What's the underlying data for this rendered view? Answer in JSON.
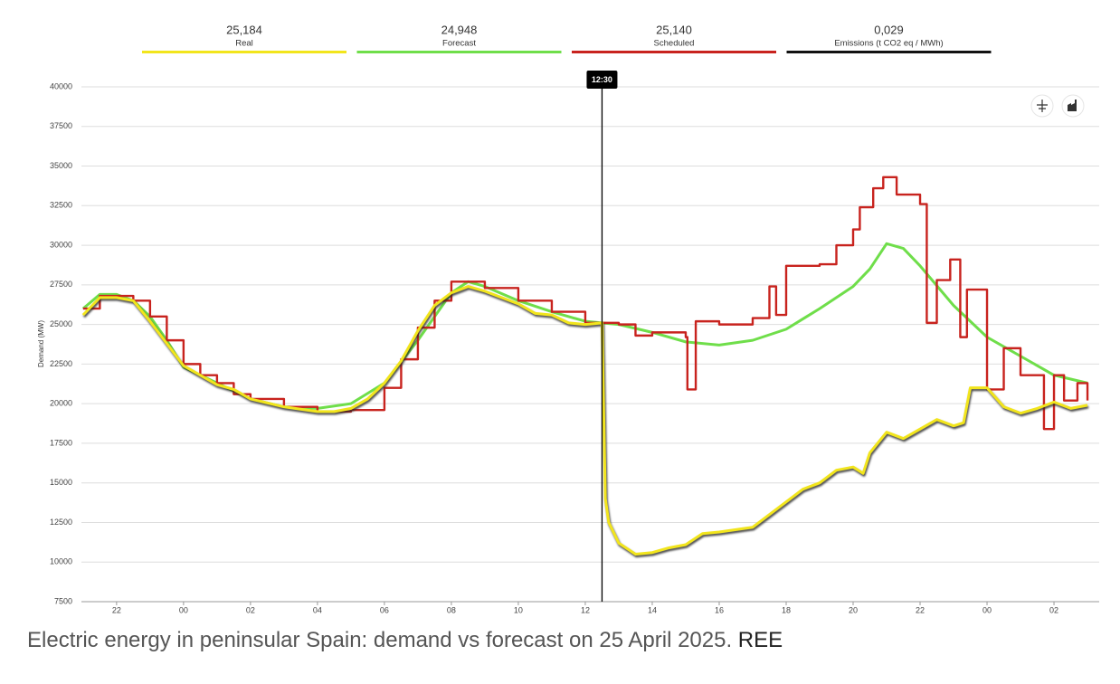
{
  "chart_data": {
    "type": "line",
    "y_label": "Demand (MW)",
    "ylim": [
      7500,
      40000
    ],
    "yticks": [
      7500,
      10000,
      12500,
      15000,
      17500,
      20000,
      22500,
      25000,
      27500,
      30000,
      32500,
      35000,
      37500,
      40000
    ],
    "xlim": [
      20.95,
      51.35
    ],
    "xticks": [
      {
        "value": 22,
        "label": "22"
      },
      {
        "value": 24,
        "label": "00"
      },
      {
        "value": 26,
        "label": "02"
      },
      {
        "value": 28,
        "label": "04"
      },
      {
        "value": 30,
        "label": "06"
      },
      {
        "value": 32,
        "label": "08"
      },
      {
        "value": 34,
        "label": "10"
      },
      {
        "value": 36,
        "label": "12"
      },
      {
        "value": 38,
        "label": "14"
      },
      {
        "value": 40,
        "label": "16"
      },
      {
        "value": 42,
        "label": "18"
      },
      {
        "value": 44,
        "label": "20"
      },
      {
        "value": 46,
        "label": "22"
      },
      {
        "value": 48,
        "label": "00"
      },
      {
        "value": 50,
        "label": "02"
      }
    ],
    "grid": true,
    "cursor": {
      "x": 36.5,
      "label": "12:30"
    },
    "series": [
      {
        "name": "Real",
        "current_label": "25,184",
        "color": "#f2e51c",
        "step": false,
        "x": [
          21,
          21.5,
          22,
          22.5,
          23,
          23.5,
          24,
          24.5,
          25,
          25.5,
          26,
          27,
          28,
          28.5,
          29,
          29.5,
          30,
          30.5,
          31,
          31.5,
          32,
          32.5,
          33,
          33.5,
          34,
          34.5,
          35,
          35.5,
          36,
          36.5,
          36.6,
          36.7,
          37,
          37.5,
          38,
          38.5,
          39,
          39.5,
          40,
          41,
          42,
          42.5,
          43,
          43.5,
          44,
          44.3,
          44.5,
          45,
          45.5,
          46,
          46.5,
          47,
          47.3,
          47.5,
          48,
          48.5,
          49,
          49.5,
          50,
          50.5,
          51
        ],
        "values": [
          25600,
          26700,
          26700,
          26500,
          25200,
          23800,
          22400,
          21800,
          21200,
          20900,
          20300,
          19800,
          19500,
          19500,
          19700,
          20300,
          21300,
          22700,
          24600,
          26200,
          27000,
          27400,
          27100,
          26700,
          26300,
          25700,
          25600,
          25100,
          25000,
          25100,
          14000,
          12500,
          11200,
          10500,
          10600,
          10900,
          11100,
          11800,
          11900,
          12200,
          13800,
          14600,
          15000,
          15800,
          16000,
          15600,
          16900,
          18200,
          17800,
          18400,
          19000,
          18600,
          18800,
          21000,
          21000,
          19800,
          19400,
          19700,
          20100,
          19700,
          19900
        ]
      },
      {
        "name": "Forecast",
        "current_label": "24,948",
        "color": "#6fde4a",
        "step": false,
        "x": [
          21,
          21.5,
          22,
          22.5,
          23,
          23.5,
          24,
          25,
          26,
          27,
          28,
          29,
          30,
          31,
          32,
          32.5,
          33,
          34,
          35,
          36,
          37,
          38,
          39,
          40,
          41,
          42,
          43,
          44,
          44.5,
          45,
          45.5,
          46,
          47,
          48,
          49,
          50,
          51
        ],
        "values": [
          26000,
          26900,
          26900,
          26500,
          25500,
          24000,
          22300,
          21300,
          20300,
          19800,
          19700,
          20000,
          21300,
          24000,
          27000,
          27700,
          27400,
          26500,
          25800,
          25200,
          25000,
          24500,
          23900,
          23700,
          24000,
          24700,
          26000,
          27400,
          28500,
          30100,
          29800,
          28700,
          26200,
          24200,
          23000,
          21800,
          21300
        ]
      },
      {
        "name": "Scheduled",
        "current_label": "25,140",
        "color": "#c8231e",
        "step": true,
        "x": [
          21,
          21.5,
          22,
          22.5,
          23,
          23.5,
          24,
          24.5,
          25,
          25.5,
          26,
          27,
          28,
          29,
          30,
          30.5,
          31,
          31.5,
          32,
          33,
          34,
          35,
          36,
          37,
          37.5,
          38,
          39,
          39.05,
          39.3,
          40,
          41,
          41.5,
          41.7,
          42,
          43,
          43.5,
          44,
          44.2,
          44.6,
          44.9,
          45.3,
          46,
          46.2,
          46.5,
          46.9,
          47.2,
          47.4,
          48,
          48.5,
          49,
          49.7,
          50,
          50.3,
          50.7,
          51
        ],
        "values": [
          26000,
          26800,
          26800,
          26500,
          25500,
          24000,
          22500,
          21800,
          21300,
          20600,
          20300,
          19800,
          19500,
          19600,
          21000,
          22800,
          24800,
          26500,
          27700,
          27300,
          26500,
          25800,
          25100,
          25000,
          24300,
          24500,
          24200,
          20900,
          25200,
          25000,
          25400,
          27400,
          25600,
          28700,
          28800,
          30000,
          31000,
          32400,
          33600,
          34300,
          33200,
          32600,
          25100,
          27800,
          29100,
          24200,
          27200,
          20900,
          23500,
          21800,
          18400,
          21800,
          20200,
          21300,
          20200
        ]
      }
    ],
    "emissions": {
      "label": "Emissions (t CO2 eq / MWh)",
      "value": "0,029",
      "color": "#111111"
    }
  },
  "caption": "Electric energy in peninsular Spain: demand vs forecast on 25 April 2025.",
  "source": "REE"
}
